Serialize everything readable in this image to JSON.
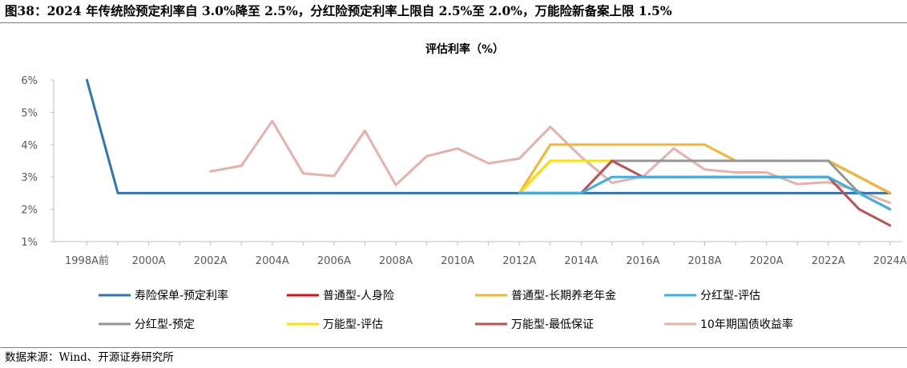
{
  "figure_title": "图38：2024 年传统险预定利率自 3.0%降至 2.5%，分红险预定利率上限自 2.5%至 2.0%，万能险新备案上限 1.5%",
  "source": "数据来源：Wind、开源证券研究所",
  "chart_data": {
    "type": "line",
    "title": "评估利率（%）",
    "xlabel": "",
    "ylabel": "",
    "x": [
      "1998A前",
      "1999A",
      "2000A",
      "2001A",
      "2002A",
      "2003A",
      "2004A",
      "2005A",
      "2006A",
      "2007A",
      "2008A",
      "2009A",
      "2010A",
      "2011A",
      "2012A",
      "2013A",
      "2014A",
      "2015A",
      "2016A",
      "2017A",
      "2018A",
      "2019A",
      "2020A",
      "2021A",
      "2022A",
      "2023A",
      "2024A"
    ],
    "x_tick_labels": [
      "1998A前",
      "2000A",
      "2002A",
      "2004A",
      "2006A",
      "2008A",
      "2010A",
      "2012A",
      "2014A",
      "2016A",
      "2018A",
      "2020A",
      "2022A",
      "2024A"
    ],
    "y_tick_labels": [
      "1%",
      "2%",
      "3%",
      "4%",
      "5%",
      "6%"
    ],
    "ylim": [
      1,
      6
    ],
    "y_unit": "%",
    "grid": false,
    "legend_position": "bottom",
    "series": [
      {
        "name": "寿险保单-预定利率",
        "color": "#2e75b6",
        "values": [
          6.0,
          2.5,
          2.5,
          2.5,
          2.5,
          2.5,
          2.5,
          2.5,
          2.5,
          2.5,
          2.5,
          2.5,
          2.5,
          2.5,
          2.5,
          2.5,
          2.5,
          2.5,
          2.5,
          2.5,
          2.5,
          2.5,
          2.5,
          2.5,
          2.5,
          2.5,
          2.5
        ]
      },
      {
        "name": "普通型-人身险",
        "color": "#e00c0c",
        "values": [
          null,
          null,
          null,
          null,
          null,
          null,
          null,
          null,
          null,
          null,
          null,
          null,
          null,
          null,
          2.5,
          3.5,
          3.5,
          3.5,
          3.5,
          3.5,
          3.5,
          3.5,
          3.5,
          3.5,
          3.5,
          3.0,
          2.5
        ]
      },
      {
        "name": "普通型-长期养老年金",
        "color": "#f5b52f",
        "values": [
          null,
          null,
          null,
          null,
          null,
          null,
          null,
          null,
          null,
          null,
          null,
          null,
          null,
          null,
          2.5,
          4.0,
          4.0,
          4.0,
          4.0,
          4.0,
          4.0,
          3.5,
          3.5,
          3.5,
          3.5,
          3.0,
          2.5
        ]
      },
      {
        "name": "分红型-评估",
        "color": "#3cafe6",
        "values": [
          null,
          null,
          null,
          null,
          null,
          null,
          null,
          null,
          null,
          null,
          null,
          null,
          null,
          null,
          2.5,
          2.5,
          2.5,
          3.0,
          3.0,
          3.0,
          3.0,
          3.0,
          3.0,
          3.0,
          3.0,
          2.5,
          2.0
        ]
      },
      {
        "name": "分红型-预定",
        "color": "#969696",
        "values": [
          null,
          null,
          null,
          null,
          null,
          null,
          null,
          null,
          null,
          null,
          null,
          null,
          null,
          null,
          2.5,
          2.5,
          2.5,
          3.5,
          3.5,
          3.5,
          3.5,
          3.5,
          3.5,
          3.5,
          3.5,
          2.5,
          2.0
        ]
      },
      {
        "name": "万能型-评估",
        "color": "#ffe000",
        "values": [
          null,
          null,
          null,
          null,
          null,
          null,
          null,
          null,
          null,
          null,
          null,
          null,
          null,
          null,
          2.5,
          3.5,
          3.5,
          3.5,
          3.5,
          3.5,
          3.5,
          3.5,
          3.5,
          3.5,
          3.5,
          null,
          null
        ]
      },
      {
        "name": "万能型-最低保证",
        "color": "#c0504d",
        "values": [
          null,
          null,
          null,
          null,
          null,
          null,
          null,
          null,
          null,
          null,
          null,
          null,
          null,
          null,
          2.5,
          2.5,
          2.5,
          3.5,
          3.0,
          3.0,
          3.0,
          3.0,
          3.0,
          3.0,
          3.0,
          2.0,
          1.5
        ]
      },
      {
        "name": "10年期国债收益率",
        "color": "#e8b0aa",
        "values": [
          null,
          null,
          null,
          null,
          3.17,
          3.35,
          4.73,
          3.11,
          3.03,
          4.43,
          2.75,
          3.64,
          3.88,
          3.42,
          3.57,
          4.55,
          3.62,
          2.82,
          3.01,
          3.88,
          3.23,
          3.14,
          3.14,
          2.78,
          2.84,
          2.56,
          2.2
        ]
      }
    ]
  }
}
